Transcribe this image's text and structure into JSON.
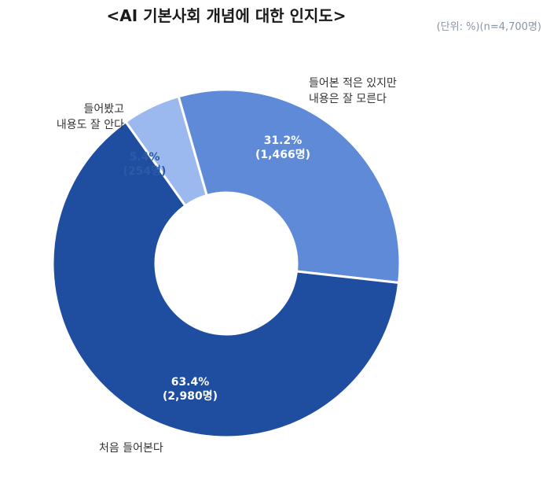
{
  "chart_data": {
    "type": "pie",
    "variant": "donut",
    "title": "<AI 기본사회 개념에 대한 인지도>",
    "unit_note": "(단위: %)(n=4,700명)",
    "slices": [
      {
        "label_lines": [
          "들어봤고",
          "내용도 잘 안다"
        ],
        "value": 5.4,
        "value_label": "5.4%",
        "count_label": "(254명)",
        "color": "#9bb8ef",
        "value_text_color": "#2c5aa8"
      },
      {
        "label_lines": [
          "들어본 적은 있지만",
          "내용은 잘 모른다"
        ],
        "value": 31.2,
        "value_label": "31.2%",
        "count_label": "(1,466명)",
        "color": "#5e8ad8",
        "value_text_color": "#ffffff"
      },
      {
        "label_lines": [
          "처음 들어본다"
        ],
        "value": 63.4,
        "value_label": "63.4%",
        "count_label": "(2,980명)",
        "color": "#1f4ea0",
        "value_text_color": "#ffffff"
      }
    ]
  }
}
